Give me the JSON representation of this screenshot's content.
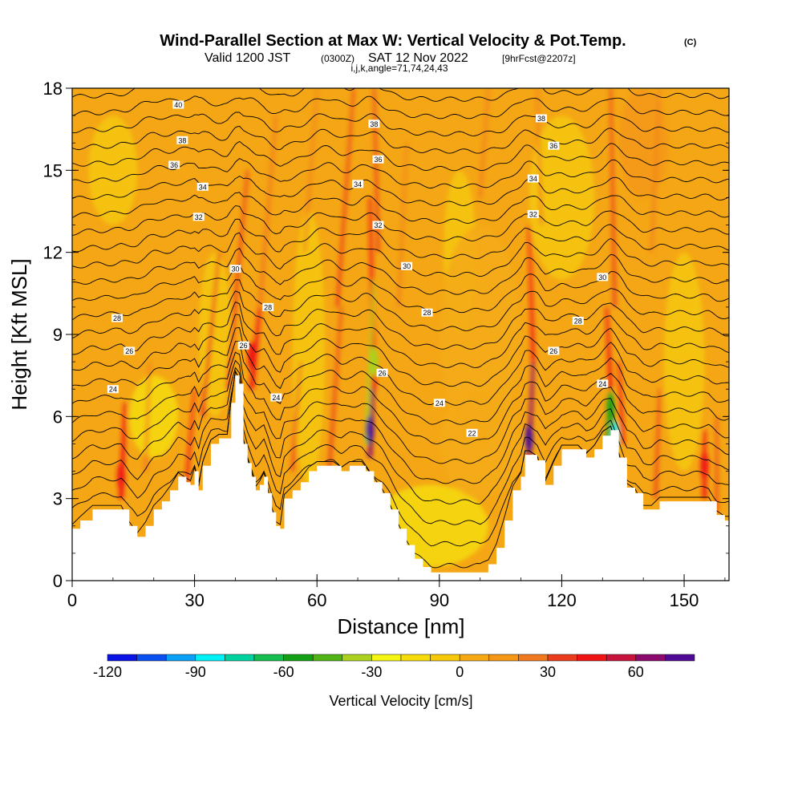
{
  "title": {
    "main": "Wind-Parallel Section at Max W: Vertical Velocity & Pot.Temp.",
    "copyright": "(C)",
    "valid_prefix": "Valid 1200 JST",
    "valid_z": "(0300Z)",
    "valid_date": "SAT 12 Nov 2022",
    "fcst": "[9hrFcst@2207z]",
    "params": "i,j,k,angle=71,74,24,43"
  },
  "colors": {
    "terrain": "#ffffff",
    "background_field": "#f5a615",
    "contour": "#000000"
  },
  "colorbar": {
    "label": "Vertical Velocity [cm/s]",
    "bins": [
      {
        "lo": -120,
        "hi": -110,
        "color": "#0a14e6"
      },
      {
        "lo": -110,
        "hi": -100,
        "color": "#0a4ff0"
      },
      {
        "lo": -100,
        "hi": -90,
        "color": "#0aa0f5"
      },
      {
        "lo": -90,
        "hi": -80,
        "color": "#00f0f5"
      },
      {
        "lo": -80,
        "hi": -70,
        "color": "#00d2a0"
      },
      {
        "lo": -70,
        "hi": -60,
        "color": "#14be50"
      },
      {
        "lo": -60,
        "hi": -50,
        "color": "#14a014"
      },
      {
        "lo": -50,
        "hi": -40,
        "color": "#50b414"
      },
      {
        "lo": -40,
        "hi": -30,
        "color": "#aad21e"
      },
      {
        "lo": -30,
        "hi": -20,
        "color": "#f5f514"
      },
      {
        "lo": -20,
        "hi": -10,
        "color": "#f5dc0a"
      },
      {
        "lo": -10,
        "hi": 0,
        "color": "#f5c80a"
      },
      {
        "lo": 0,
        "hi": 10,
        "color": "#f5aa14"
      },
      {
        "lo": 10,
        "hi": 20,
        "color": "#f59614"
      },
      {
        "lo": 20,
        "hi": 30,
        "color": "#f0781e"
      },
      {
        "lo": 30,
        "hi": 40,
        "color": "#eb3c1e"
      },
      {
        "lo": 40,
        "hi": 50,
        "color": "#f01414"
      },
      {
        "lo": 50,
        "hi": 60,
        "color": "#c8143c"
      },
      {
        "lo": 60,
        "hi": 70,
        "color": "#8c0a6e"
      },
      {
        "lo": 70,
        "hi": 80,
        "color": "#500a96"
      }
    ],
    "tick_labels": [
      "-120",
      "-90",
      "-60",
      "-30",
      "0",
      "30",
      "60"
    ]
  },
  "chart_data": {
    "type": "heatmap",
    "xlabel": "Distance [nm]",
    "ylabel": "Height [Kft MSL]",
    "xlim": [
      0,
      161
    ],
    "ylim": [
      0,
      18
    ],
    "x_ticks": [
      "0",
      "30",
      "60",
      "90",
      "120",
      "150"
    ],
    "y_ticks": [
      "0",
      "3",
      "6",
      "9",
      "12",
      "15",
      "18"
    ],
    "terrain_profile": {
      "x": [
        0,
        2,
        5,
        10,
        12,
        14,
        16,
        18,
        20,
        22,
        24,
        26,
        28,
        29,
        30,
        31,
        32,
        34,
        36,
        38,
        39,
        40,
        41,
        42,
        43,
        44,
        45,
        46,
        47,
        48,
        49,
        50,
        51,
        52,
        54,
        56,
        58,
        60,
        64,
        66,
        68,
        70,
        71,
        72,
        74,
        76,
        78,
        80,
        82,
        84,
        86,
        88,
        90,
        92,
        94,
        96,
        98,
        100,
        102,
        104,
        106,
        108,
        110,
        111,
        112,
        114,
        116,
        118,
        120,
        124,
        126,
        128,
        130,
        132,
        134,
        136,
        138,
        140,
        142,
        144,
        146,
        150,
        154,
        156,
        158,
        160,
        161
      ],
      "height": [
        1.9,
        2.2,
        2.6,
        2.6,
        2.6,
        2.0,
        1.6,
        2.0,
        2.6,
        2.9,
        3.3,
        3.8,
        3.6,
        3.5,
        4.0,
        3.3,
        4.2,
        5.0,
        5.2,
        5.2,
        6.5,
        7.5,
        7.2,
        5.0,
        4.3,
        3.8,
        3.3,
        3.5,
        3.8,
        3.2,
        2.5,
        2.0,
        1.9,
        3.0,
        3.3,
        3.6,
        4.0,
        4.2,
        4.2,
        4.0,
        4.2,
        4.2,
        4.2,
        4.0,
        3.6,
        3.2,
        2.6,
        1.9,
        1.3,
        0.8,
        0.5,
        0.3,
        0.3,
        0.3,
        0.3,
        0.3,
        0.3,
        0.3,
        0.6,
        1.2,
        2.2,
        3.3,
        3.8,
        4.6,
        4.6,
        4.4,
        3.5,
        4.2,
        4.8,
        4.8,
        4.5,
        4.8,
        5.3,
        5.5,
        4.5,
        3.4,
        3.2,
        2.6,
        2.6,
        2.9,
        2.9,
        2.9,
        2.9,
        2.9,
        2.4,
        2.2,
        2.2
      ]
    },
    "theta_contours": {
      "levels": [
        22,
        24,
        26,
        28,
        30,
        32,
        34,
        36,
        38,
        40
      ],
      "labels": [
        {
          "x": 98,
          "y": 5.4,
          "text": "22"
        },
        {
          "x": 10,
          "y": 7.0,
          "text": "24"
        },
        {
          "x": 50,
          "y": 6.7,
          "text": "24"
        },
        {
          "x": 90,
          "y": 6.5,
          "text": "24"
        },
        {
          "x": 130,
          "y": 7.2,
          "text": "24"
        },
        {
          "x": 14,
          "y": 8.4,
          "text": "26"
        },
        {
          "x": 42,
          "y": 8.6,
          "text": "26"
        },
        {
          "x": 76,
          "y": 7.6,
          "text": "26"
        },
        {
          "x": 118,
          "y": 8.4,
          "text": "26"
        },
        {
          "x": 11,
          "y": 9.6,
          "text": "28"
        },
        {
          "x": 48,
          "y": 10.0,
          "text": "28"
        },
        {
          "x": 87,
          "y": 9.8,
          "text": "28"
        },
        {
          "x": 124,
          "y": 9.5,
          "text": "28"
        },
        {
          "x": 40,
          "y": 11.4,
          "text": "30"
        },
        {
          "x": 82,
          "y": 11.5,
          "text": "30"
        },
        {
          "x": 130,
          "y": 11.1,
          "text": "30"
        },
        {
          "x": 31,
          "y": 13.3,
          "text": "32"
        },
        {
          "x": 75,
          "y": 13.0,
          "text": "32"
        },
        {
          "x": 113,
          "y": 13.4,
          "text": "32"
        },
        {
          "x": 32,
          "y": 14.4,
          "text": "34"
        },
        {
          "x": 70,
          "y": 14.5,
          "text": "34"
        },
        {
          "x": 113,
          "y": 14.7,
          "text": "34"
        },
        {
          "x": 25,
          "y": 15.2,
          "text": "36"
        },
        {
          "x": 75,
          "y": 15.4,
          "text": "36"
        },
        {
          "x": 118,
          "y": 15.9,
          "text": "36"
        },
        {
          "x": 27,
          "y": 16.1,
          "text": "38"
        },
        {
          "x": 74,
          "y": 16.7,
          "text": "38"
        },
        {
          "x": 115,
          "y": 16.9,
          "text": "38"
        },
        {
          "x": 26,
          "y": 17.4,
          "text": "40"
        }
      ]
    }
  }
}
